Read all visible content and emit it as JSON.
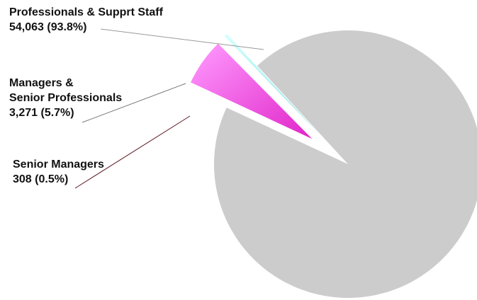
{
  "chart_data": {
    "type": "pie",
    "title": "",
    "slices": [
      {
        "name": "Professionals & Supprt Staff",
        "value": 54063,
        "percent": 93.8,
        "value_label": "54,063 (93.8%)",
        "color": "#cccccc",
        "exploded": false
      },
      {
        "name": "Managers & Senior Professionals",
        "name_lines": [
          "Managers &",
          "Senior Professionals"
        ],
        "value": 3271,
        "percent": 5.7,
        "value_label": "3,271 (5.7%)",
        "color": "#f050e0",
        "exploded": true
      },
      {
        "name": "Senior Managers",
        "value": 308,
        "percent": 0.5,
        "value_label": "308 (0.5%)",
        "color": "#b0eeee",
        "exploded": true
      }
    ],
    "legend": "none",
    "labels_outside": true
  }
}
